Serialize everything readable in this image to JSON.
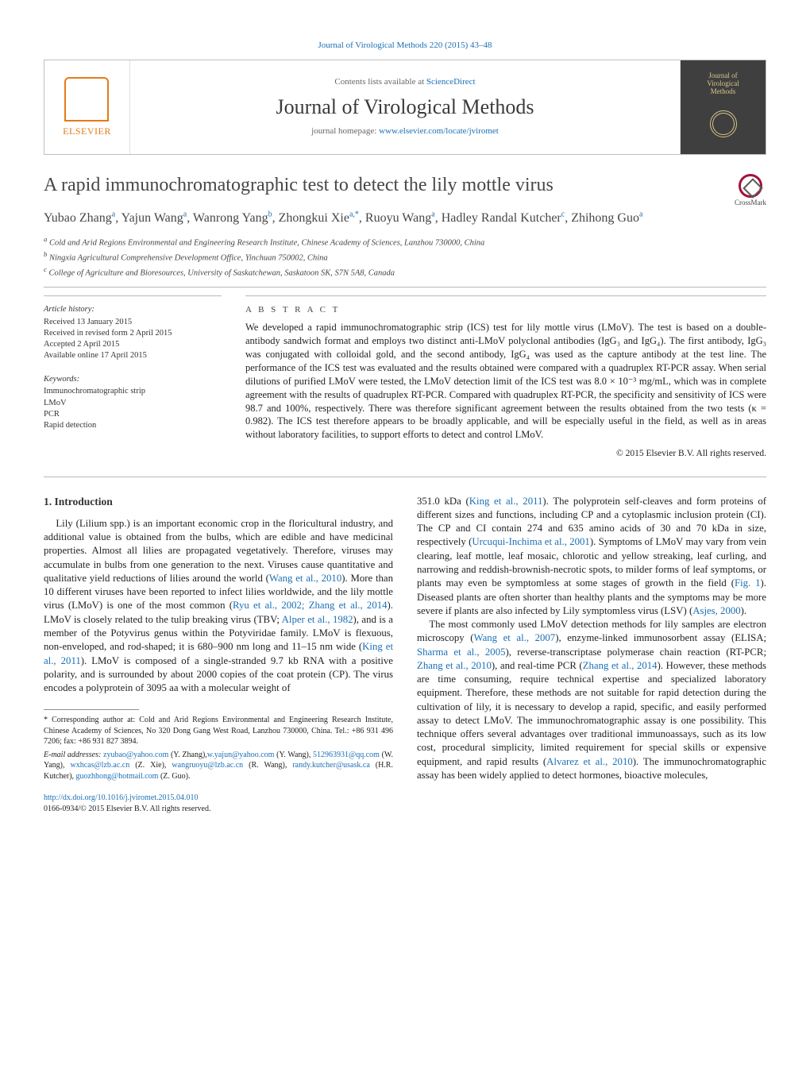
{
  "top_journal_line": "Journal of Virological Methods 220 (2015) 43–48",
  "header": {
    "contents_line_prefix": "Contents lists available at ",
    "contents_link": "ScienceDirect",
    "journal_name": "Journal of Virological Methods",
    "homepage_prefix": "journal homepage: ",
    "homepage_link": "www.elsevier.com/locate/jviromet",
    "publisher_logo_text": "ELSEVIER",
    "cover_title": "Journal of Virological Methods"
  },
  "crossmark_label": "CrossMark",
  "article_title": "A rapid immunochromatographic test to detect the lily mottle virus",
  "authors_html": "Yubao Zhang<sup>a</sup>, Yajun Wang<sup>a</sup>, Wanrong Yang<sup>b</sup>, Zhongkui Xie<sup>a,*</sup>, Ruoyu Wang<sup>a</sup>, Hadley Randal Kutcher<sup>c</sup>, Zhihong Guo<sup>a</sup>",
  "affiliations": [
    "a Cold and Arid Regions Environmental and Engineering Research Institute, Chinese Academy of Sciences, Lanzhou 730000, China",
    "b Ningxia Agricultural Comprehensive Development Office, Yinchuan 750002, China",
    "c College of Agriculture and Bioresources, University of Saskatchewan, Saskatoon SK, S7N 5A8, Canada"
  ],
  "article_info": {
    "heading": "Article history:",
    "received": "Received 13 January 2015",
    "revised": "Received in revised form 2 April 2015",
    "accepted": "Accepted 2 April 2015",
    "online": "Available online 17 April 2015"
  },
  "keywords": {
    "heading": "Keywords:",
    "items": [
      "Immunochromatographic strip",
      "LMoV",
      "PCR",
      "Rapid detection"
    ]
  },
  "abstract": {
    "heading": "a b s t r a c t",
    "text": "We developed a rapid immunochromatographic strip (ICS) test for lily mottle virus (LMoV). The test is based on a double-antibody sandwich format and employs two distinct anti-LMoV polyclonal antibodies (IgG₃ and IgG₄). The first antibody, IgG₃ was conjugated with colloidal gold, and the second antibody, IgG₄ was used as the capture antibody at the test line. The performance of the ICS test was evaluated and the results obtained were compared with a quadruplex RT-PCR assay. When serial dilutions of purified LMoV were tested, the LMoV detection limit of the ICS test was 8.0 × 10⁻³ mg/mL, which was in complete agreement with the results of quadruplex RT-PCR. Compared with quadruplex RT-PCR, the specificity and sensitivity of ICS were 98.7 and 100%, respectively. There was therefore significant agreement between the results obtained from the two tests (κ = 0.982). The ICS test therefore appears to be broadly applicable, and will be especially useful in the field, as well as in areas without laboratory facilities, to support efforts to detect and control LMoV.",
    "copyright": "© 2015 Elsevier B.V. All rights reserved."
  },
  "section1": {
    "title": "1.  Introduction",
    "p1a": "Lily (Lilium spp.) is an important economic crop in the floricultural industry, and additional value is obtained from the bulbs, which are edible and have medicinal properties. Almost all lilies are propagated vegetatively. Therefore, viruses may accumulate in bulbs from one generation to the next. Viruses cause quantitative and qualitative yield reductions of lilies around the world (",
    "ref1": "Wang et al., 2010",
    "p1b": "). More than 10 different viruses have been reported to infect lilies worldwide, and the lily mottle virus (LMoV) is one of the most common (",
    "ref2": "Ryu et al., 2002; Zhang et al., 2014",
    "p1c": "). LMoV is closely related to the tulip breaking virus (TBV; ",
    "ref3": "Alper et al., 1982",
    "p1d": "), and is a member of the Potyvirus genus within the Potyviridae family. LMoV is flexuous, non-enveloped, and rod-shaped; it is 680–900 nm long and 11–15 nm wide (",
    "ref4": "King et al., 2011",
    "p1e": "). LMoV is composed of a single-stranded 9.7 kb RNA with a positive polarity, and is surrounded by about 2000 copies of the coat protein (CP). The virus encodes a polyprotein of 3095 aa with a molecular weight of",
    "p2a": "351.0 kDa (",
    "ref5": "King et al., 2011",
    "p2b": "). The polyprotein self-cleaves and form proteins of different sizes and functions, including CP and a cytoplasmic inclusion protein (CI). The CP and CI contain 274 and 635 amino acids of 30 and 70 kDa in size, respectively (",
    "ref6": "Urcuqui-Inchima et al., 2001",
    "p2c": "). Symptoms of LMoV may vary from vein clearing, leaf mottle, leaf mosaic, chlorotic and yellow streaking, leaf curling, and narrowing and reddish-brownish-necrotic spots, to milder forms of leaf symptoms, or plants may even be symptomless at some stages of growth in the field (",
    "ref7": "Fig. 1",
    "p2d": "). Diseased plants are often shorter than healthy plants and the symptoms may be more severe if plants are also infected by Lily symptomless virus (LSV) (",
    "ref8": "Asjes, 2000",
    "p2e": ").",
    "p3a": "The most commonly used LMoV detection methods for lily samples are electron microscopy (",
    "ref9": "Wang et al., 2007",
    "p3b": "), enzyme-linked immunosorbent assay (ELISA; ",
    "ref10": "Sharma et al., 2005",
    "p3c": "), reverse-transcriptase polymerase chain reaction (RT-PCR; ",
    "ref11": "Zhang et al., 2010",
    "p3d": "), and real-time PCR (",
    "ref12": "Zhang et al., 2014",
    "p3e": "). However, these methods are time consuming, require technical expertise and specialized laboratory equipment. Therefore, these methods are not suitable for rapid detection during the cultivation of lily, it is necessary to develop a rapid, specific, and easily performed assay to detect LMoV. The immunochromatographic assay is one possibility. This technique offers several advantages over traditional immunoassays, such as its low cost, procedural simplicity, limited requirement for special skills or expensive equipment, and rapid results (",
    "ref13": "Alvarez et al., 2010",
    "p3f": "). The immunochromatographic assay has been widely applied to detect hormones, bioactive molecules,"
  },
  "footnotes": {
    "corresponding": "* Corresponding author at: Cold and Arid Regions Environmental and Engineering Research Institute, Chinese Academy of Sciences, No 320 Dong Gang West Road, Lanzhou 730000, China. Tel.: +86 931 496 7206; fax: +86 931 827 3894.",
    "email_label": "E-mail addresses: ",
    "emails": [
      {
        "addr": "zyubao@yahoo.com",
        "name": " (Y. Zhang),"
      },
      {
        "addr": "w.yajun@yahoo.com",
        "name": " (Y. Wang), "
      },
      {
        "addr": "512963931@qq.com",
        "name": " (W. Yang), "
      },
      {
        "addr": "wxhcas@lzb.ac.cn",
        "name": " (Z. Xie), "
      },
      {
        "addr": "wangruoyu@lzb.ac.cn",
        "name": " (R. Wang), "
      },
      {
        "addr": "randy.kutcher@usask.ca",
        "name": " (H.R. Kutcher), "
      },
      {
        "addr": "guozhhong@hotmail.com",
        "name": " (Z. Guo)."
      }
    ]
  },
  "doi": {
    "link": "http://dx.doi.org/10.1016/j.jviromet.2015.04.010",
    "line2": "0166-0934/© 2015 Elsevier B.V. All rights reserved."
  },
  "colors": {
    "link": "#1b6fb5",
    "rule": "#b9b9b9",
    "accent_orange": "#e67a17",
    "cover_bg": "#3f3f3f",
    "cover_fg": "#d9c68a"
  }
}
